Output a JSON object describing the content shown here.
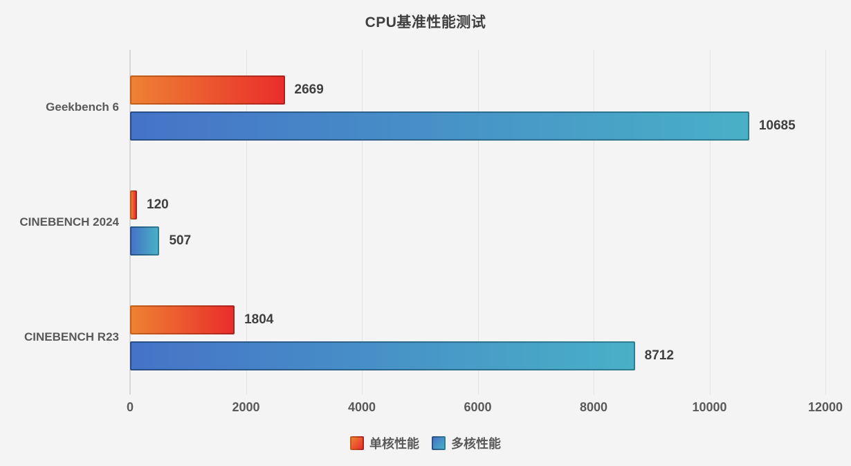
{
  "title": "CPU基准性能测试",
  "chart_data": {
    "type": "bar",
    "orientation": "horizontal",
    "title": "CPU基准性能测试",
    "categories": [
      "Geekbench 6",
      "CINEBENCH 2024",
      "CINEBENCH R23"
    ],
    "series": [
      {
        "name": "单核性能",
        "values": [
          2669,
          120,
          1804
        ],
        "color_start": "#ee8133",
        "color_end": "#e92e2b",
        "border_start": "#c2611c",
        "border_end": "#ad1f1f"
      },
      {
        "name": "多核性能",
        "values": [
          10685,
          507,
          8712
        ],
        "color_start": "#4573c7",
        "color_end": "#49b0c7",
        "border_start": "#2b4d85",
        "border_end": "#2e7e91"
      }
    ],
    "xlim": [
      0,
      12000
    ],
    "xticks": [
      0,
      2000,
      4000,
      6000,
      8000,
      10000,
      12000
    ],
    "grid": true,
    "legend_position": "bottom",
    "value_labels": true
  },
  "legend": {
    "single_core_label": "单核性能",
    "multi_core_label": "多核性能"
  }
}
